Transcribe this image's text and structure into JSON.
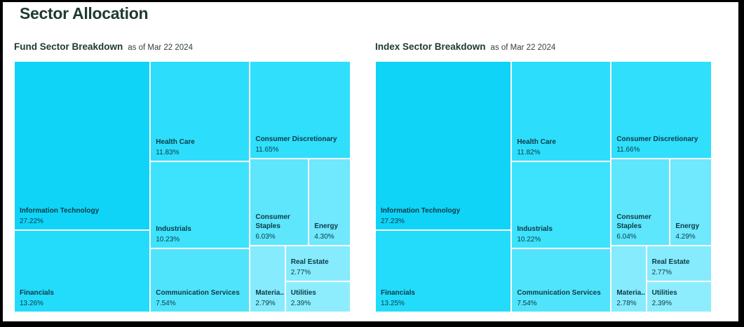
{
  "page": {
    "title": "Sector Allocation"
  },
  "colors": {
    "frame": "#000000",
    "background": "#ffffff",
    "heading_text": "#1e3a33",
    "as_of_text": "#333f3b",
    "cell_label_text": "#0d3a46",
    "cell_gap": "#ffffff"
  },
  "chart_data": [
    {
      "type": "treemap",
      "title": "Fund Sector Breakdown",
      "as_of": "as of Mar 22 2024",
      "legend": "none",
      "value_unit": "percent",
      "sectors": [
        {
          "name": "Information Technology",
          "label": "Information Technology",
          "value": 27.22,
          "value_label": "27.22%",
          "color": "#0fd4f8"
        },
        {
          "name": "Financials",
          "label": "Financials",
          "value": 13.26,
          "value_label": "13.26%",
          "color": "#23dcfb"
        },
        {
          "name": "Health Care",
          "label": "Health Care",
          "value": 11.83,
          "value_label": "11.83%",
          "color": "#2cdefc"
        },
        {
          "name": "Consumer Discretionary",
          "label": "Consumer Discretionary",
          "value": 11.65,
          "value_label": "11.65%",
          "color": "#2fdffc"
        },
        {
          "name": "Industrials",
          "label": "Industrials",
          "value": 10.23,
          "value_label": "10.23%",
          "color": "#3de2fd"
        },
        {
          "name": "Communication Services",
          "label": "Communication Services",
          "value": 7.54,
          "value_label": "7.54%",
          "color": "#50e4fc"
        },
        {
          "name": "Consumer Staples",
          "label": "Consumer Staples",
          "value": 6.03,
          "value_label": "6.03%",
          "color": "#5de6fc"
        },
        {
          "name": "Energy",
          "label": "Energy",
          "value": 4.3,
          "value_label": "4.30%",
          "color": "#70e8fd"
        },
        {
          "name": "Materials",
          "label": "Materia...",
          "value": 2.79,
          "value_label": "2.79%",
          "color": "#85ebfd"
        },
        {
          "name": "Real Estate",
          "label": "Real Estate",
          "value": 2.77,
          "value_label": "2.77%",
          "color": "#86ebfd"
        },
        {
          "name": "Utilities",
          "label": "Utilities",
          "value": 2.39,
          "value_label": "2.39%",
          "color": "#8dedfd"
        }
      ],
      "layout_tree": {
        "dir": "row",
        "children": [
          {
            "dir": "col",
            "leaves": [
              0,
              1
            ]
          },
          {
            "dir": "col",
            "leaves": [
              2,
              4,
              5
            ]
          },
          {
            "dir": "col",
            "children": [
              {
                "leaf": 3
              },
              {
                "dir": "row",
                "leaves": [
                  6,
                  7
                ]
              },
              {
                "dir": "row",
                "children": [
                  {
                    "leaf": 8
                  },
                  {
                    "dir": "col",
                    "leaves": [
                      9,
                      10
                    ]
                  }
                ]
              }
            ]
          }
        ]
      }
    },
    {
      "type": "treemap",
      "title": "Index Sector Breakdown",
      "as_of": "as of Mar 22 2024",
      "legend": "none",
      "value_unit": "percent",
      "sectors": [
        {
          "name": "Information Technology",
          "label": "Information Technology",
          "value": 27.23,
          "value_label": "27.23%",
          "color": "#0fd4f8"
        },
        {
          "name": "Financials",
          "label": "Financials",
          "value": 13.25,
          "value_label": "13.25%",
          "color": "#23dcfb"
        },
        {
          "name": "Health Care",
          "label": "Health Care",
          "value": 11.82,
          "value_label": "11.82%",
          "color": "#2cdefc"
        },
        {
          "name": "Consumer Discretionary",
          "label": "Consumer Discretionary",
          "value": 11.66,
          "value_label": "11.66%",
          "color": "#2fdffc"
        },
        {
          "name": "Industrials",
          "label": "Industrials",
          "value": 10.22,
          "value_label": "10.22%",
          "color": "#3de2fd"
        },
        {
          "name": "Communication Services",
          "label": "Communication Services",
          "value": 7.54,
          "value_label": "7.54%",
          "color": "#50e4fc"
        },
        {
          "name": "Consumer Staples",
          "label": "Consumer Staples",
          "value": 6.04,
          "value_label": "6.04%",
          "color": "#5de6fc"
        },
        {
          "name": "Energy",
          "label": "Energy",
          "value": 4.29,
          "value_label": "4.29%",
          "color": "#70e8fd"
        },
        {
          "name": "Materials",
          "label": "Materia...",
          "value": 2.78,
          "value_label": "2.78%",
          "color": "#85ebfd"
        },
        {
          "name": "Real Estate",
          "label": "Real Estate",
          "value": 2.77,
          "value_label": "2.77%",
          "color": "#86ebfd"
        },
        {
          "name": "Utilities",
          "label": "Utilities",
          "value": 2.39,
          "value_label": "2.39%",
          "color": "#8dedfd"
        }
      ],
      "layout_tree": {
        "dir": "row",
        "children": [
          {
            "dir": "col",
            "leaves": [
              0,
              1
            ]
          },
          {
            "dir": "col",
            "leaves": [
              2,
              4,
              5
            ]
          },
          {
            "dir": "col",
            "children": [
              {
                "leaf": 3
              },
              {
                "dir": "row",
                "leaves": [
                  6,
                  7
                ]
              },
              {
                "dir": "row",
                "children": [
                  {
                    "leaf": 8
                  },
                  {
                    "dir": "col",
                    "leaves": [
                      9,
                      10
                    ]
                  }
                ]
              }
            ]
          }
        ]
      }
    }
  ]
}
